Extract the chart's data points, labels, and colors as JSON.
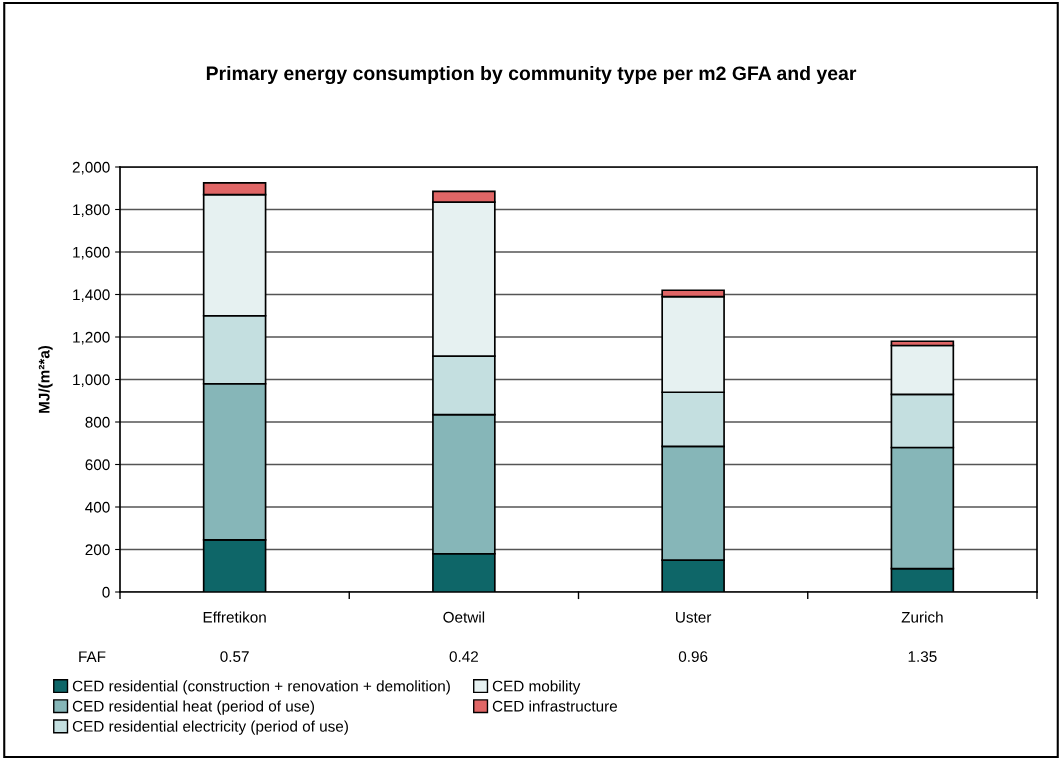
{
  "chart_data": {
    "type": "bar",
    "stacked": true,
    "title": "Primary energy consumption by community type per m2 GFA and year",
    "ylabel": "MJ/(m²*a)",
    "categories": [
      "Effretikon",
      "Oetwil",
      "Uster",
      "Zurich"
    ],
    "series": [
      {
        "name": "CED residential (construction + renovation + demolition)",
        "color": "#0e6668",
        "values": [
          245,
          180,
          150,
          110
        ]
      },
      {
        "name": "CED residential heat (period of use)",
        "color": "#86b6b8",
        "values": [
          735,
          655,
          535,
          570
        ]
      },
      {
        "name": "CED residential electricity (period of use)",
        "color": "#c4dfe0",
        "values": [
          320,
          275,
          255,
          250
        ]
      },
      {
        "name": "CED mobility",
        "color": "#e6f1f1",
        "values": [
          570,
          725,
          450,
          230
        ]
      },
      {
        "name": "CED infrastructure",
        "color": "#e06666",
        "values": [
          55,
          50,
          30,
          20
        ]
      }
    ],
    "ylim": [
      0,
      2000
    ],
    "yticks": [
      {
        "value": 0,
        "label": "0"
      },
      {
        "value": 200,
        "label": "200"
      },
      {
        "value": 400,
        "label": "400"
      },
      {
        "value": 600,
        "label": "600"
      },
      {
        "value": 800,
        "label": "800"
      },
      {
        "value": 1000,
        "label": "1,000"
      },
      {
        "value": 1200,
        "label": "1,200"
      },
      {
        "value": 1400,
        "label": "1,400"
      },
      {
        "value": 1600,
        "label": "1,600"
      },
      {
        "value": 1800,
        "label": "1,800"
      },
      {
        "value": 2000,
        "label": "2,000"
      }
    ],
    "grid": "y",
    "legend": "bottom",
    "annotations": [
      "FAF",
      "0.57",
      "0.42",
      "0.96",
      "1.35"
    ]
  }
}
